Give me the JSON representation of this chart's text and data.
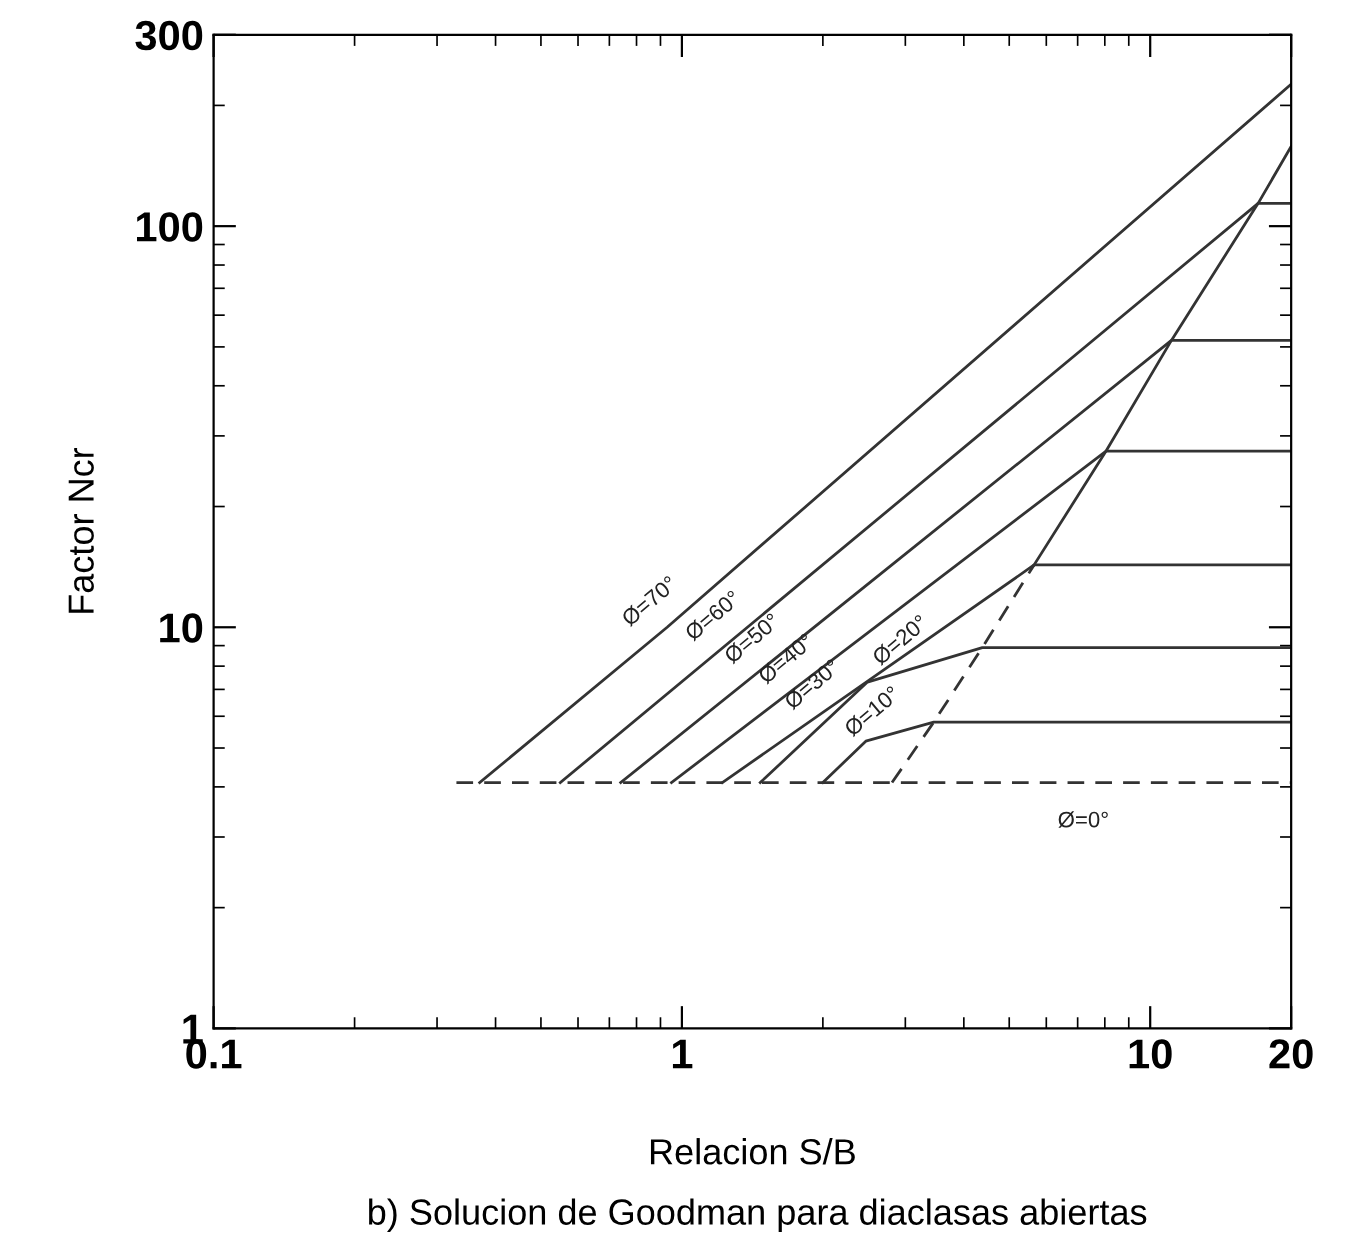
{
  "chart_data": {
    "type": "line",
    "xlabel": "Relacion S/B",
    "ylabel": "Factor Ncr",
    "log": "xy",
    "xlim": [
      0.1,
      20
    ],
    "ylim": [
      1,
      300
    ],
    "xticks": [
      0.1,
      1,
      10,
      20
    ],
    "yticks": [
      1,
      10,
      100,
      300
    ],
    "grid": false,
    "legend": false,
    "marker": "none",
    "series": [
      {
        "color": "#333333",
        "line_style": "dashed",
        "x": [
          0.33,
          20
        ],
        "values": [
          4.1,
          4.1
        ]
      },
      {
        "color": "#333333",
        "line_style": "solid",
        "x": [
          0.37,
          0.93,
          20
        ],
        "values": [
          4.1,
          10,
          226
        ]
      },
      {
        "color": "#333333",
        "line_style": "solid",
        "x": [
          0.55,
          17.0,
          20
        ],
        "values": [
          4.1,
          114,
          114
        ]
      },
      {
        "color": "#333333",
        "line_style": "solid",
        "x": [
          0.74,
          11.1,
          20
        ],
        "values": [
          4.1,
          51.9,
          51.9
        ]
      },
      {
        "color": "#333333",
        "line_style": "solid",
        "x": [
          0.95,
          8.05,
          20
        ],
        "values": [
          4.1,
          27.5,
          27.5
        ]
      },
      {
        "color": "#333333",
        "line_style": "solid",
        "x": [
          1.22,
          5.65,
          20
        ],
        "values": [
          4.1,
          14.3,
          14.3
        ]
      },
      {
        "color": "#333333",
        "line_style": "solid",
        "x": [
          1.47,
          2.49,
          4.38,
          20
        ],
        "values": [
          4.1,
          7.3,
          8.9,
          8.9
        ]
      },
      {
        "color": "#333333",
        "line_style": "solid",
        "x": [
          2.0,
          2.47,
          3.45,
          20
        ],
        "values": [
          4.1,
          5.2,
          5.8,
          5.8
        ]
      },
      {
        "color": "#333333",
        "line_style": "dashed",
        "x": [
          2.81,
          3.45,
          4.38,
          5.65
        ],
        "values": [
          4.1,
          5.8,
          8.9,
          14.3
        ]
      },
      {
        "color": "#333333",
        "line_style": "solid",
        "x": [
          5.65,
          8.05,
          11.1,
          17.0,
          20
        ],
        "values": [
          14.3,
          27.5,
          51.9,
          114,
          158
        ]
      }
    ],
    "annotations": [
      {
        "text": "Ø=70°",
        "x": 0.93,
        "y": 10
      },
      {
        "text": "Ø=60°",
        "x": 1.27,
        "y": 9.2
      },
      {
        "text": "Ø=50°",
        "x": 1.54,
        "y": 8.2
      },
      {
        "text": "Ø=40°",
        "x": 1.82,
        "y": 7.3
      },
      {
        "text": "Ø=30°",
        "x": 2.07,
        "y": 6.3
      },
      {
        "text": "Ø=20°",
        "x": 3.19,
        "y": 8.0
      },
      {
        "text": "Ø=10°",
        "x": 2.78,
        "y": 5.4
      },
      {
        "text": "Ø=0°",
        "x": 7.2,
        "y": 4.1
      },
      "b) Solucion de Goodman para diaclasas abiertas"
    ]
  }
}
